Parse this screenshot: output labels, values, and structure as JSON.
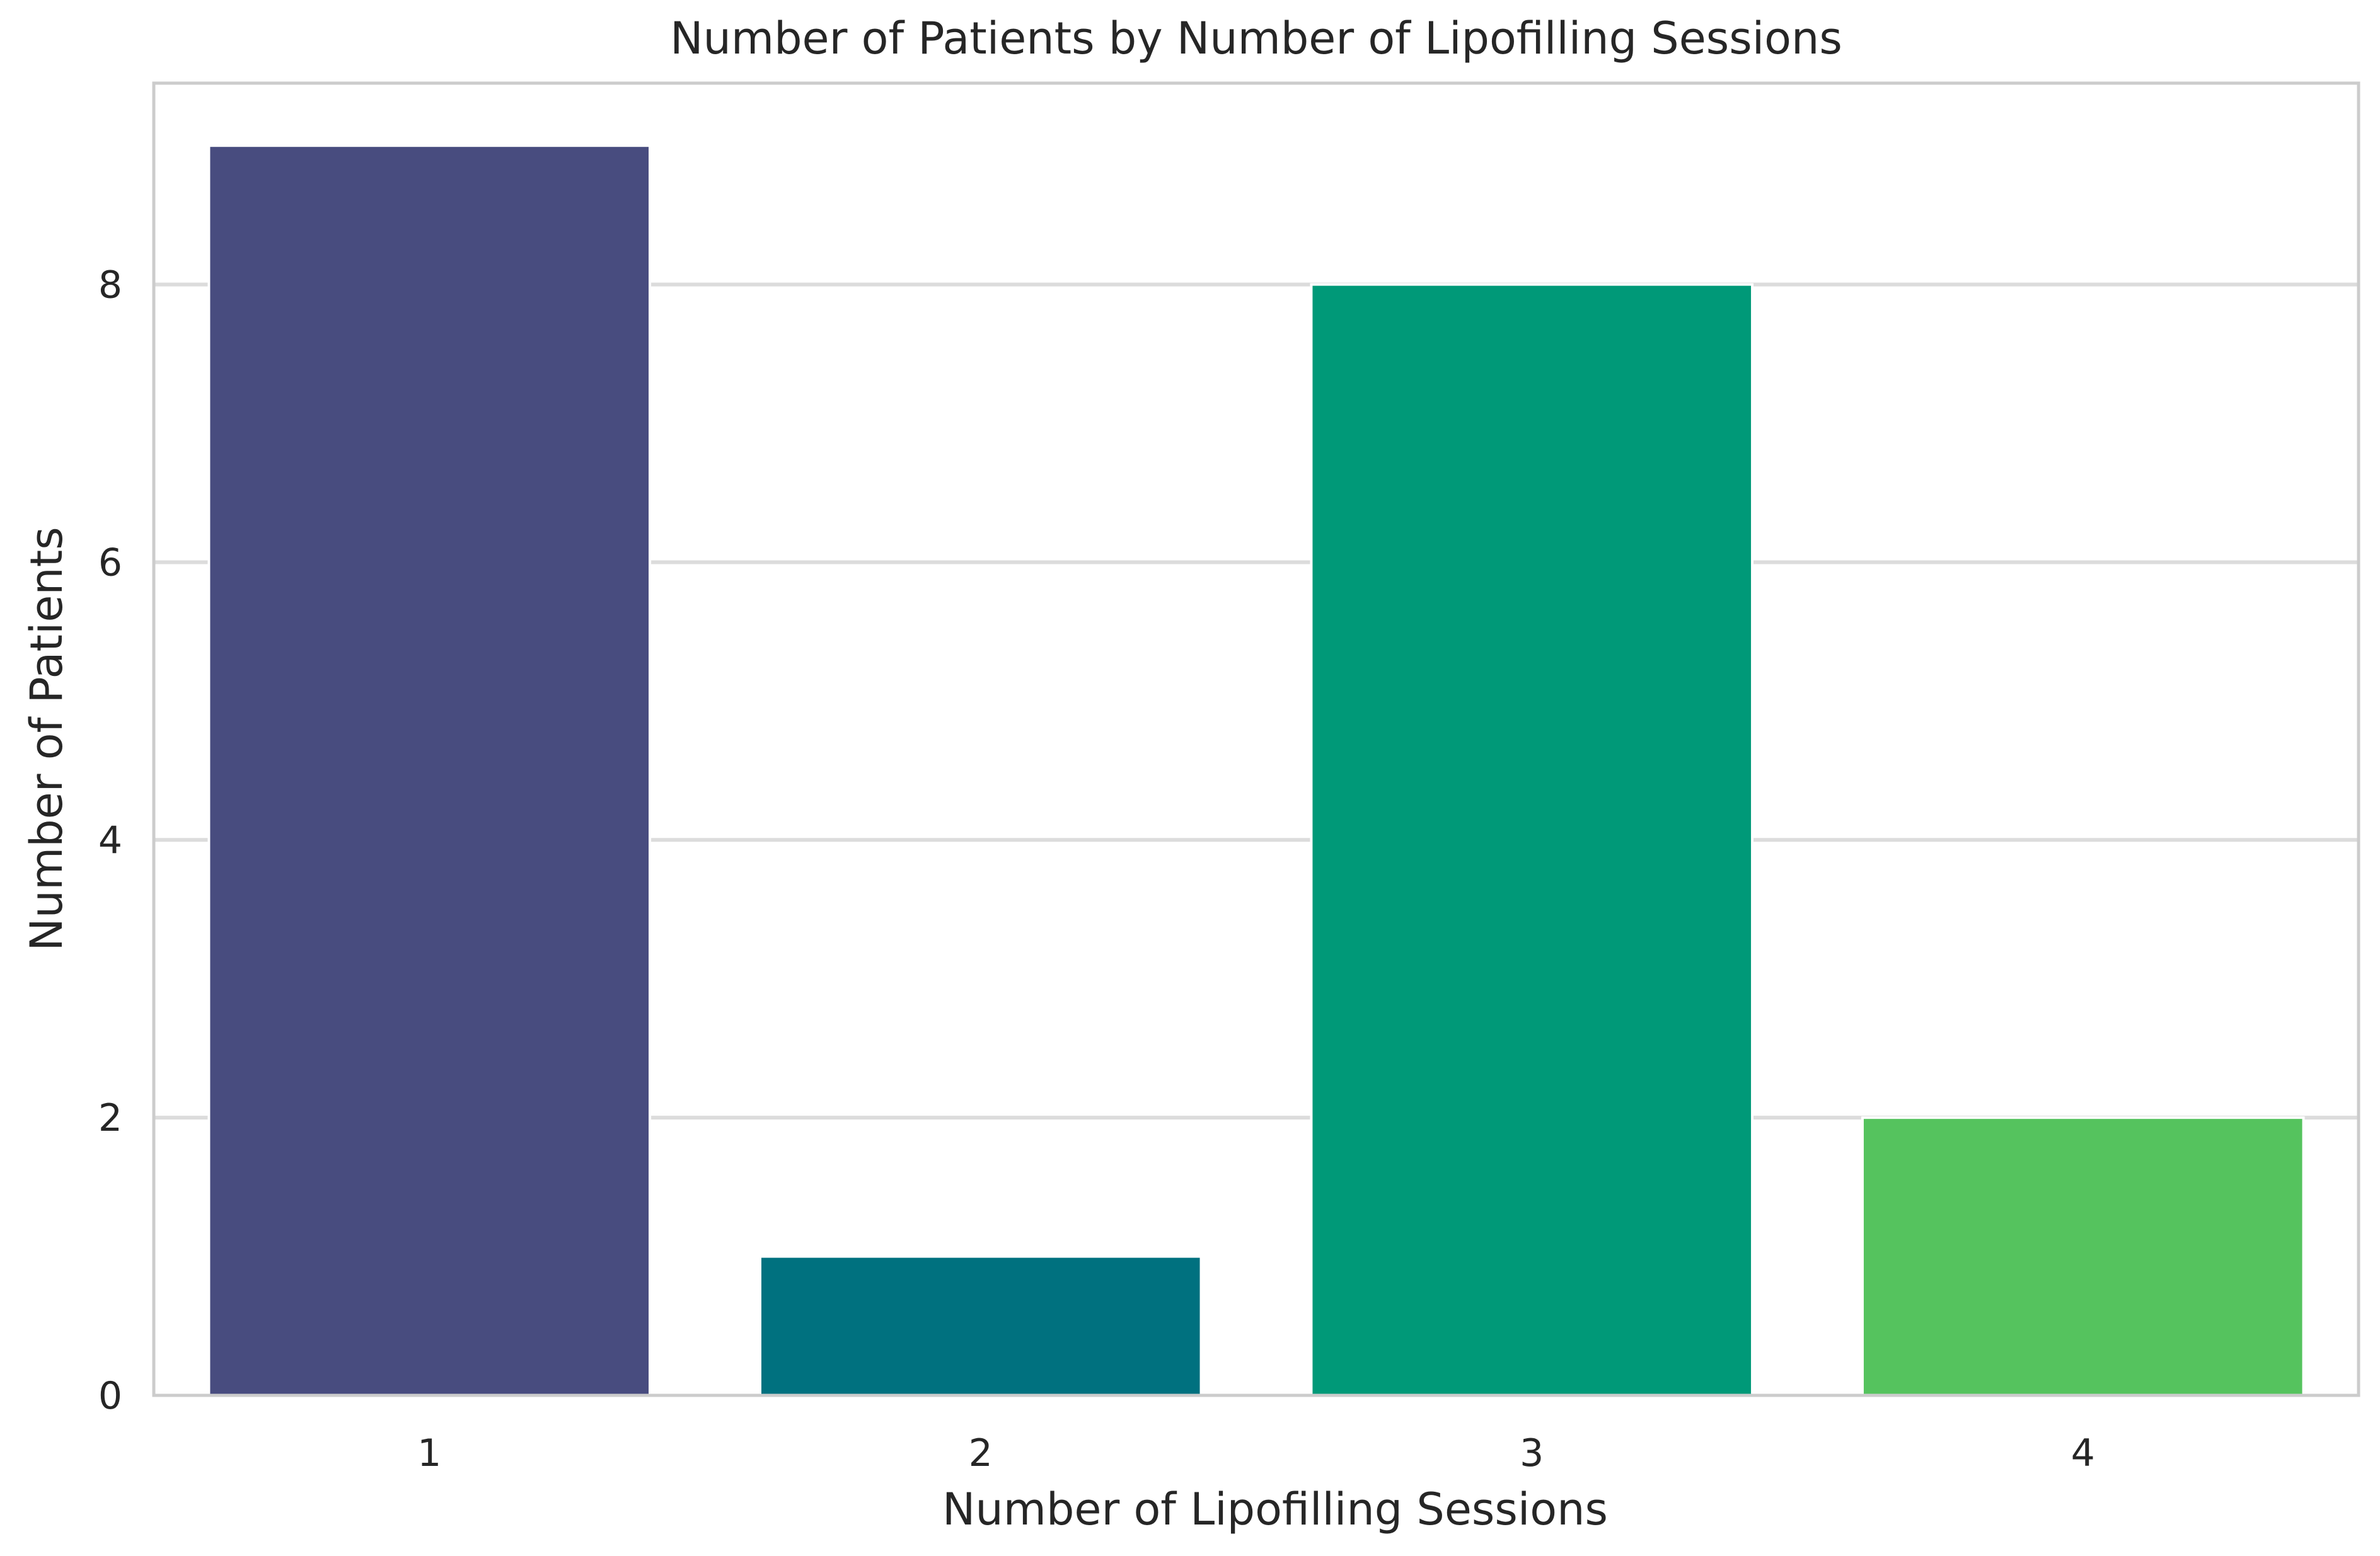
{
  "chart_data": {
    "type": "bar",
    "title": "Number of Patients by Number of Lipofilling Sessions",
    "xlabel": "Number of Lipofilling Sessions",
    "ylabel": "Number of Patients",
    "categories": [
      "1",
      "2",
      "3",
      "4"
    ],
    "values": [
      9,
      1,
      8,
      2
    ],
    "colors": [
      "#484c7f",
      "#00717f",
      "#009978",
      "#55c35e"
    ],
    "yticks": [
      0,
      2,
      4,
      6,
      8
    ],
    "ylim": [
      0,
      9.45
    ],
    "grid": true,
    "grid_axis": "y"
  }
}
